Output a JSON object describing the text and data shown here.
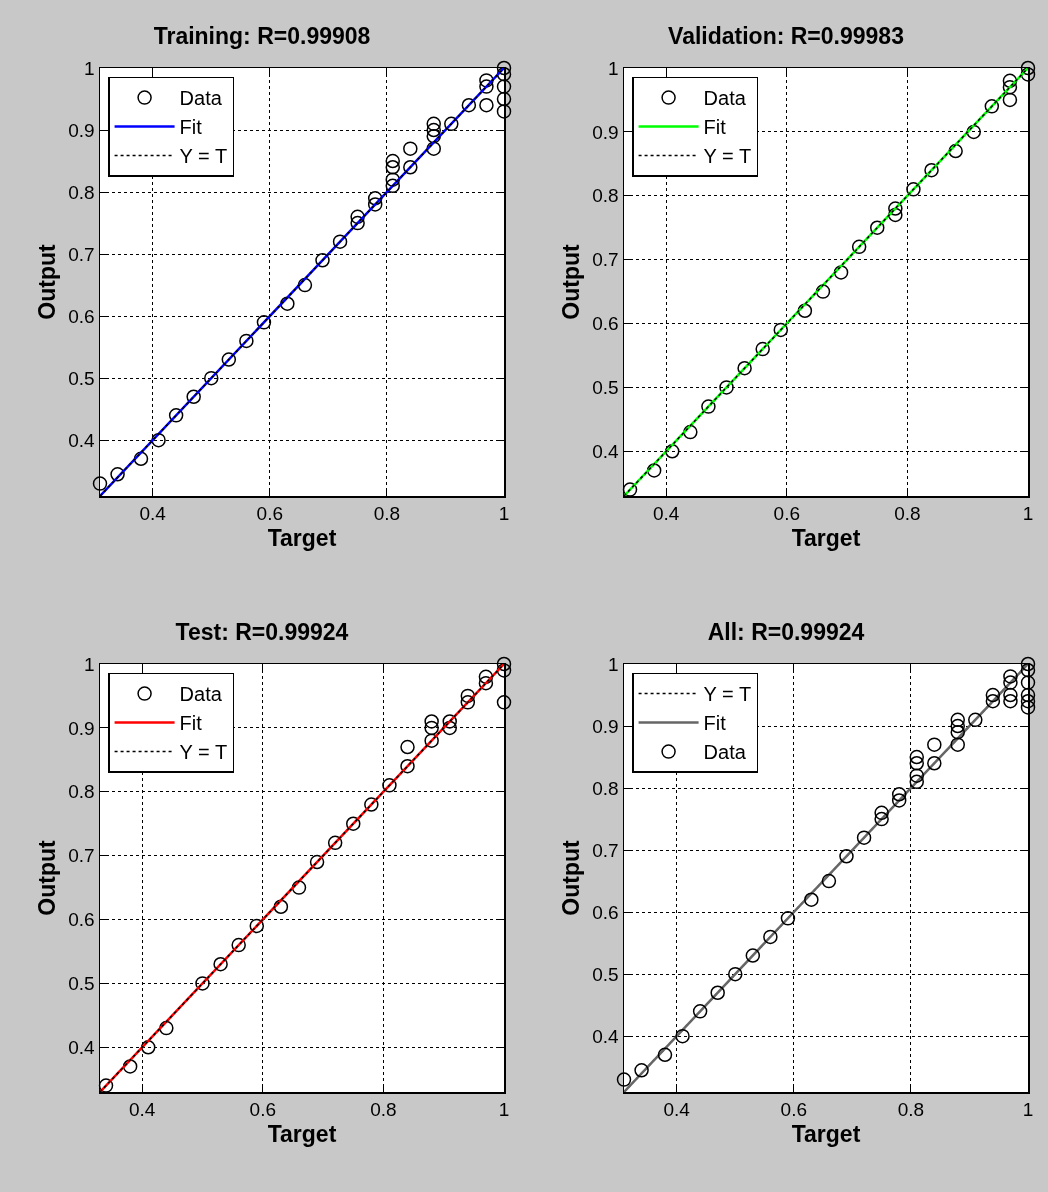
{
  "chart_data": [
    {
      "type": "scatter",
      "title": "Training: R=0.99908",
      "xlabel": "Target",
      "ylabel": "Output",
      "xlim": [
        0.31,
        1
      ],
      "ylim": [
        0.31,
        1
      ],
      "xticks": [
        0.4,
        0.6,
        0.8,
        1
      ],
      "yticks": [
        0.4,
        0.5,
        0.6,
        0.7,
        0.8,
        0.9,
        1
      ],
      "grid": true,
      "legend": "top left",
      "series": [
        {
          "name": "Data",
          "color": "#000000",
          "marker": "circle",
          "x": [
            0.31,
            0.34,
            0.38,
            0.41,
            0.44,
            0.47,
            0.5,
            0.53,
            0.56,
            0.59,
            0.63,
            0.66,
            0.69,
            0.72,
            0.75,
            0.75,
            0.78,
            0.78,
            0.81,
            0.81,
            0.81,
            0.81,
            0.84,
            0.84,
            0.88,
            0.88,
            0.88,
            0.88,
            0.91,
            0.94,
            0.97,
            0.97,
            0.97,
            1,
            1,
            1,
            1,
            1
          ],
          "values": [
            0.33,
            0.345,
            0.37,
            0.4,
            0.44,
            0.47,
            0.5,
            0.53,
            0.56,
            0.59,
            0.62,
            0.65,
            0.69,
            0.72,
            0.75,
            0.76,
            0.78,
            0.79,
            0.81,
            0.82,
            0.84,
            0.85,
            0.84,
            0.87,
            0.87,
            0.89,
            0.9,
            0.91,
            0.91,
            0.94,
            0.97,
            0.98,
            0.94,
            1,
            0.99,
            0.97,
            0.95,
            0.93
          ]
        },
        {
          "type": "line",
          "name": "Fit",
          "color": "#0000ff",
          "marker": "none",
          "line_style": "solid",
          "x": [
            0.31,
            1
          ],
          "values": [
            0.31,
            1
          ]
        },
        {
          "type": "line",
          "name": "Y = T",
          "color": "#000000",
          "marker": "none",
          "line_style": "dotted",
          "x": [
            0.31,
            1
          ],
          "values": [
            0.31,
            1
          ]
        }
      ]
    },
    {
      "type": "scatter",
      "title": "Validation: R=0.99983",
      "xlabel": "Target",
      "ylabel": "Output",
      "xlim": [
        0.33,
        1
      ],
      "ylim": [
        0.33,
        1
      ],
      "xticks": [
        0.4,
        0.6,
        0.8,
        1
      ],
      "yticks": [
        0.4,
        0.5,
        0.6,
        0.7,
        0.8,
        0.9,
        1
      ],
      "grid": true,
      "legend": "top left",
      "series": [
        {
          "name": "Data",
          "color": "#000000",
          "marker": "circle",
          "x": [
            0.34,
            0.38,
            0.41,
            0.44,
            0.47,
            0.5,
            0.53,
            0.56,
            0.59,
            0.63,
            0.66,
            0.69,
            0.72,
            0.75,
            0.78,
            0.78,
            0.81,
            0.84,
            0.88,
            0.91,
            0.94,
            0.97,
            0.97,
            0.97,
            1,
            1
          ],
          "values": [
            0.34,
            0.37,
            0.4,
            0.43,
            0.47,
            0.5,
            0.53,
            0.56,
            0.59,
            0.62,
            0.65,
            0.68,
            0.72,
            0.75,
            0.77,
            0.78,
            0.81,
            0.84,
            0.87,
            0.9,
            0.94,
            0.97,
            0.98,
            0.95,
            1,
            0.99
          ]
        },
        {
          "type": "line",
          "name": "Fit",
          "color": "#00ff00",
          "marker": "none",
          "line_style": "solid",
          "x": [
            0.33,
            1
          ],
          "values": [
            0.33,
            1
          ]
        },
        {
          "type": "line",
          "name": "Y = T",
          "color": "#000000",
          "marker": "none",
          "line_style": "dotted",
          "x": [
            0.33,
            1
          ],
          "values": [
            0.33,
            1
          ]
        }
      ]
    },
    {
      "type": "scatter",
      "title": "Test: R=0.99924",
      "xlabel": "Target",
      "ylabel": "Output",
      "xlim": [
        0.33,
        1
      ],
      "ylim": [
        0.33,
        1
      ],
      "xticks": [
        0.4,
        0.6,
        0.8,
        1
      ],
      "yticks": [
        0.4,
        0.5,
        0.6,
        0.7,
        0.8,
        0.9,
        1
      ],
      "grid": true,
      "legend": "top left",
      "series": [
        {
          "name": "Data",
          "color": "#000000",
          "marker": "circle",
          "x": [
            0.34,
            0.38,
            0.41,
            0.44,
            0.5,
            0.53,
            0.56,
            0.59,
            0.63,
            0.66,
            0.69,
            0.72,
            0.75,
            0.78,
            0.81,
            0.84,
            0.84,
            0.88,
            0.88,
            0.88,
            0.91,
            0.91,
            0.94,
            0.94,
            0.97,
            0.97,
            1,
            1,
            1
          ],
          "values": [
            0.34,
            0.37,
            0.4,
            0.43,
            0.5,
            0.53,
            0.56,
            0.59,
            0.62,
            0.65,
            0.69,
            0.72,
            0.75,
            0.78,
            0.81,
            0.84,
            0.87,
            0.88,
            0.9,
            0.91,
            0.9,
            0.91,
            0.94,
            0.95,
            0.97,
            0.98,
            1,
            0.99,
            0.94
          ]
        },
        {
          "type": "line",
          "name": "Fit",
          "color": "#ff0000",
          "marker": "none",
          "line_style": "solid",
          "x": [
            0.33,
            1
          ],
          "values": [
            0.33,
            1
          ]
        },
        {
          "type": "line",
          "name": "Y = T",
          "color": "#000000",
          "marker": "none",
          "line_style": "dotted",
          "x": [
            0.33,
            1
          ],
          "values": [
            0.33,
            1
          ]
        }
      ]
    },
    {
      "type": "scatter",
      "title": "All: R=0.99924",
      "xlabel": "Target",
      "ylabel": "Output",
      "xlim": [
        0.31,
        1
      ],
      "ylim": [
        0.31,
        1
      ],
      "xticks": [
        0.4,
        0.6,
        0.8,
        1
      ],
      "yticks": [
        0.4,
        0.5,
        0.6,
        0.7,
        0.8,
        0.9,
        1
      ],
      "grid": true,
      "legend": "top left",
      "series": [
        {
          "type": "line",
          "name": "Y = T",
          "color": "#000000",
          "marker": "none",
          "line_style": "dotted",
          "x": [
            0.31,
            1
          ],
          "values": [
            0.31,
            1
          ]
        },
        {
          "type": "line",
          "name": "Fit",
          "color": "#666666",
          "marker": "none",
          "line_style": "solid",
          "x": [
            0.31,
            1
          ],
          "values": [
            0.31,
            1
          ]
        },
        {
          "name": "Data",
          "color": "#000000",
          "marker": "circle",
          "x": [
            0.31,
            0.34,
            0.38,
            0.41,
            0.44,
            0.47,
            0.5,
            0.53,
            0.56,
            0.59,
            0.63,
            0.66,
            0.69,
            0.72,
            0.75,
            0.75,
            0.78,
            0.78,
            0.81,
            0.81,
            0.81,
            0.81,
            0.84,
            0.84,
            0.88,
            0.88,
            0.88,
            0.88,
            0.91,
            0.94,
            0.94,
            0.97,
            0.97,
            0.97,
            0.97,
            1,
            1,
            1,
            1,
            1,
            1
          ],
          "values": [
            0.33,
            0.345,
            0.37,
            0.4,
            0.44,
            0.47,
            0.5,
            0.53,
            0.56,
            0.59,
            0.62,
            0.65,
            0.69,
            0.72,
            0.75,
            0.76,
            0.78,
            0.79,
            0.81,
            0.82,
            0.84,
            0.85,
            0.84,
            0.87,
            0.87,
            0.89,
            0.9,
            0.91,
            0.91,
            0.94,
            0.95,
            0.97,
            0.98,
            0.94,
            0.95,
            1,
            0.99,
            0.97,
            0.95,
            0.94,
            0.93
          ]
        }
      ]
    }
  ]
}
